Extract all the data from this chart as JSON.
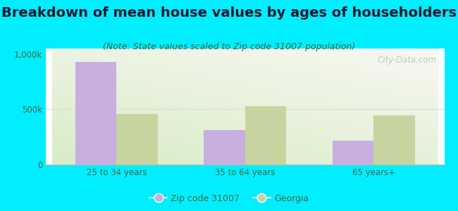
{
  "title": "Breakdown of mean house values by ages of householders",
  "subtitle": "(Note: State values scaled to Zip code 31007 population)",
  "categories": [
    "25 to 34 years",
    "35 to 64 years",
    "65 years+"
  ],
  "zip_values": [
    930000,
    310000,
    215000
  ],
  "state_values": [
    460000,
    530000,
    445000
  ],
  "ylim": [
    0,
    1050000
  ],
  "yticks": [
    0,
    500000,
    1000000
  ],
  "ytick_labels": [
    "0",
    "500k",
    "1,000k"
  ],
  "zip_color": "#c9aee0",
  "state_color": "#c8d4a0",
  "background_color": "#00eeff",
  "legend_zip_label": "Zip code 31007",
  "legend_state_label": "Georgia",
  "bar_width": 0.32,
  "title_fontsize": 14,
  "subtitle_fontsize": 9,
  "tick_fontsize": 8.5,
  "legend_fontsize": 9,
  "watermark": "City-Data.com"
}
